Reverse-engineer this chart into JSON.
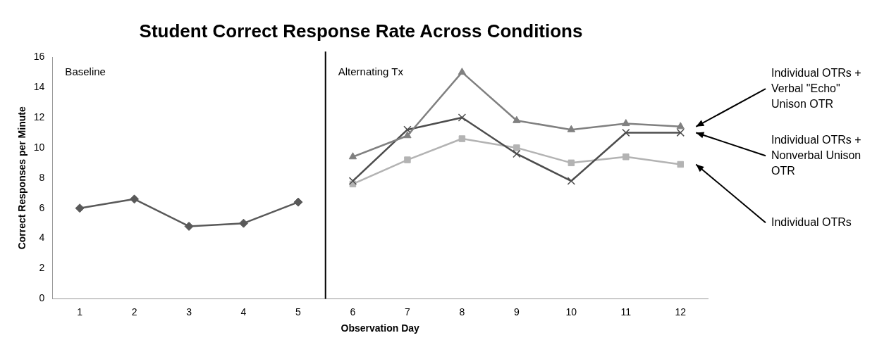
{
  "chart_data": {
    "type": "line",
    "title": "Student Correct Response Rate Across Conditions",
    "xlabel": "Observation Day",
    "ylabel": "Correct Responses per Minute",
    "xlim": [
      0.5,
      12.5
    ],
    "xticks": [
      1,
      2,
      3,
      4,
      5,
      6,
      7,
      8,
      9,
      10,
      11,
      12
    ],
    "ylim": [
      0,
      16
    ],
    "yticks": [
      0,
      2,
      4,
      6,
      8,
      10,
      12,
      14,
      16
    ],
    "grid": false,
    "legend": false,
    "ref_lines": [
      {
        "axis": "x",
        "value": 5.5,
        "color": "#000000"
      }
    ],
    "annotations": [
      "Baseline",
      "Alternating Tx"
    ],
    "series": [
      {
        "color": "#595959",
        "marker": "diamond",
        "x": [
          1,
          2,
          3,
          4,
          5
        ],
        "values": [
          6,
          6.6,
          4.8,
          5,
          6.4
        ]
      },
      {
        "name": "Individual OTRs + Verbal \"Echo\" Unison OTR",
        "color": "#808080",
        "marker": "triangle",
        "x": [
          6,
          7,
          8,
          9,
          10,
          11,
          12
        ],
        "values": [
          9.4,
          10.8,
          15,
          11.8,
          11.2,
          11.6,
          11.4
        ]
      },
      {
        "name": "Individual OTRs + Nonverbal Unison OTR",
        "color": "#4d4d4d",
        "marker": "cross",
        "x": [
          6,
          7,
          8,
          9,
          10,
          11,
          12
        ],
        "values": [
          7.8,
          11.2,
          12,
          9.6,
          7.8,
          11,
          11
        ]
      },
      {
        "name": "Individual OTRs",
        "color": "#b3b3b3",
        "marker": "square",
        "x": [
          6,
          7,
          8,
          9,
          10,
          11,
          12
        ],
        "values": [
          7.6,
          9.2,
          10.6,
          10,
          9,
          9.4,
          8.9
        ]
      }
    ]
  }
}
